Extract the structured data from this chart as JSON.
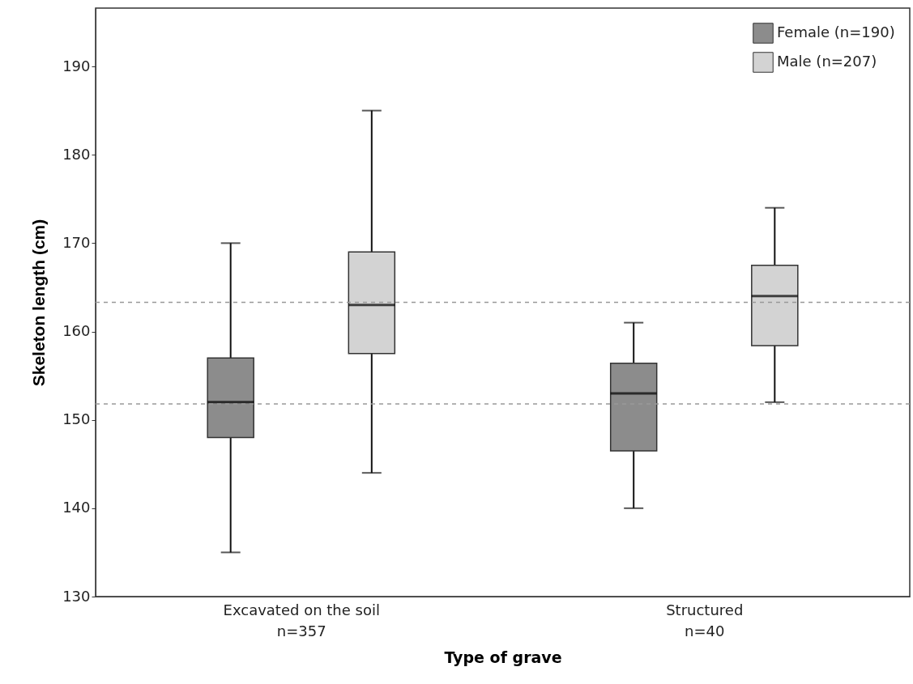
{
  "chart_data": {
    "type": "box",
    "xlabel": "Type of grave",
    "ylabel": "Skeleton length (cm)",
    "categories": [
      "Excavated on the soil\nn=357",
      "Structured\nn=40"
    ],
    "ylim": [
      130,
      196.6
    ],
    "yticks": [
      130,
      140,
      150,
      160,
      170,
      180,
      190
    ],
    "grid": false,
    "legend": "top right",
    "series": [
      {
        "name": "Female (n=190)",
        "color": "#8c8c8c",
        "boxes": [
          {
            "low": 135,
            "q1": 148,
            "median": 152,
            "q3": 157,
            "high": 170
          },
          {
            "low": 140,
            "q1": 146.5,
            "median": 153,
            "q3": 156.4,
            "high": 161
          }
        ]
      },
      {
        "name": "Male (n=207)",
        "color": "#d3d3d3",
        "boxes": [
          {
            "low": 144,
            "q1": 157.5,
            "median": 163,
            "q3": 169,
            "high": 185
          },
          {
            "low": 152,
            "q1": 158.4,
            "median": 164,
            "q3": 167.5,
            "high": 174
          }
        ]
      }
    ],
    "ref_lines": [
      {
        "axis": "y",
        "value": 163.3,
        "color": "#999999",
        "line_style": "dashed"
      },
      {
        "axis": "y",
        "value": 151.8,
        "color": "#999999",
        "line_style": "dashed"
      }
    ]
  }
}
